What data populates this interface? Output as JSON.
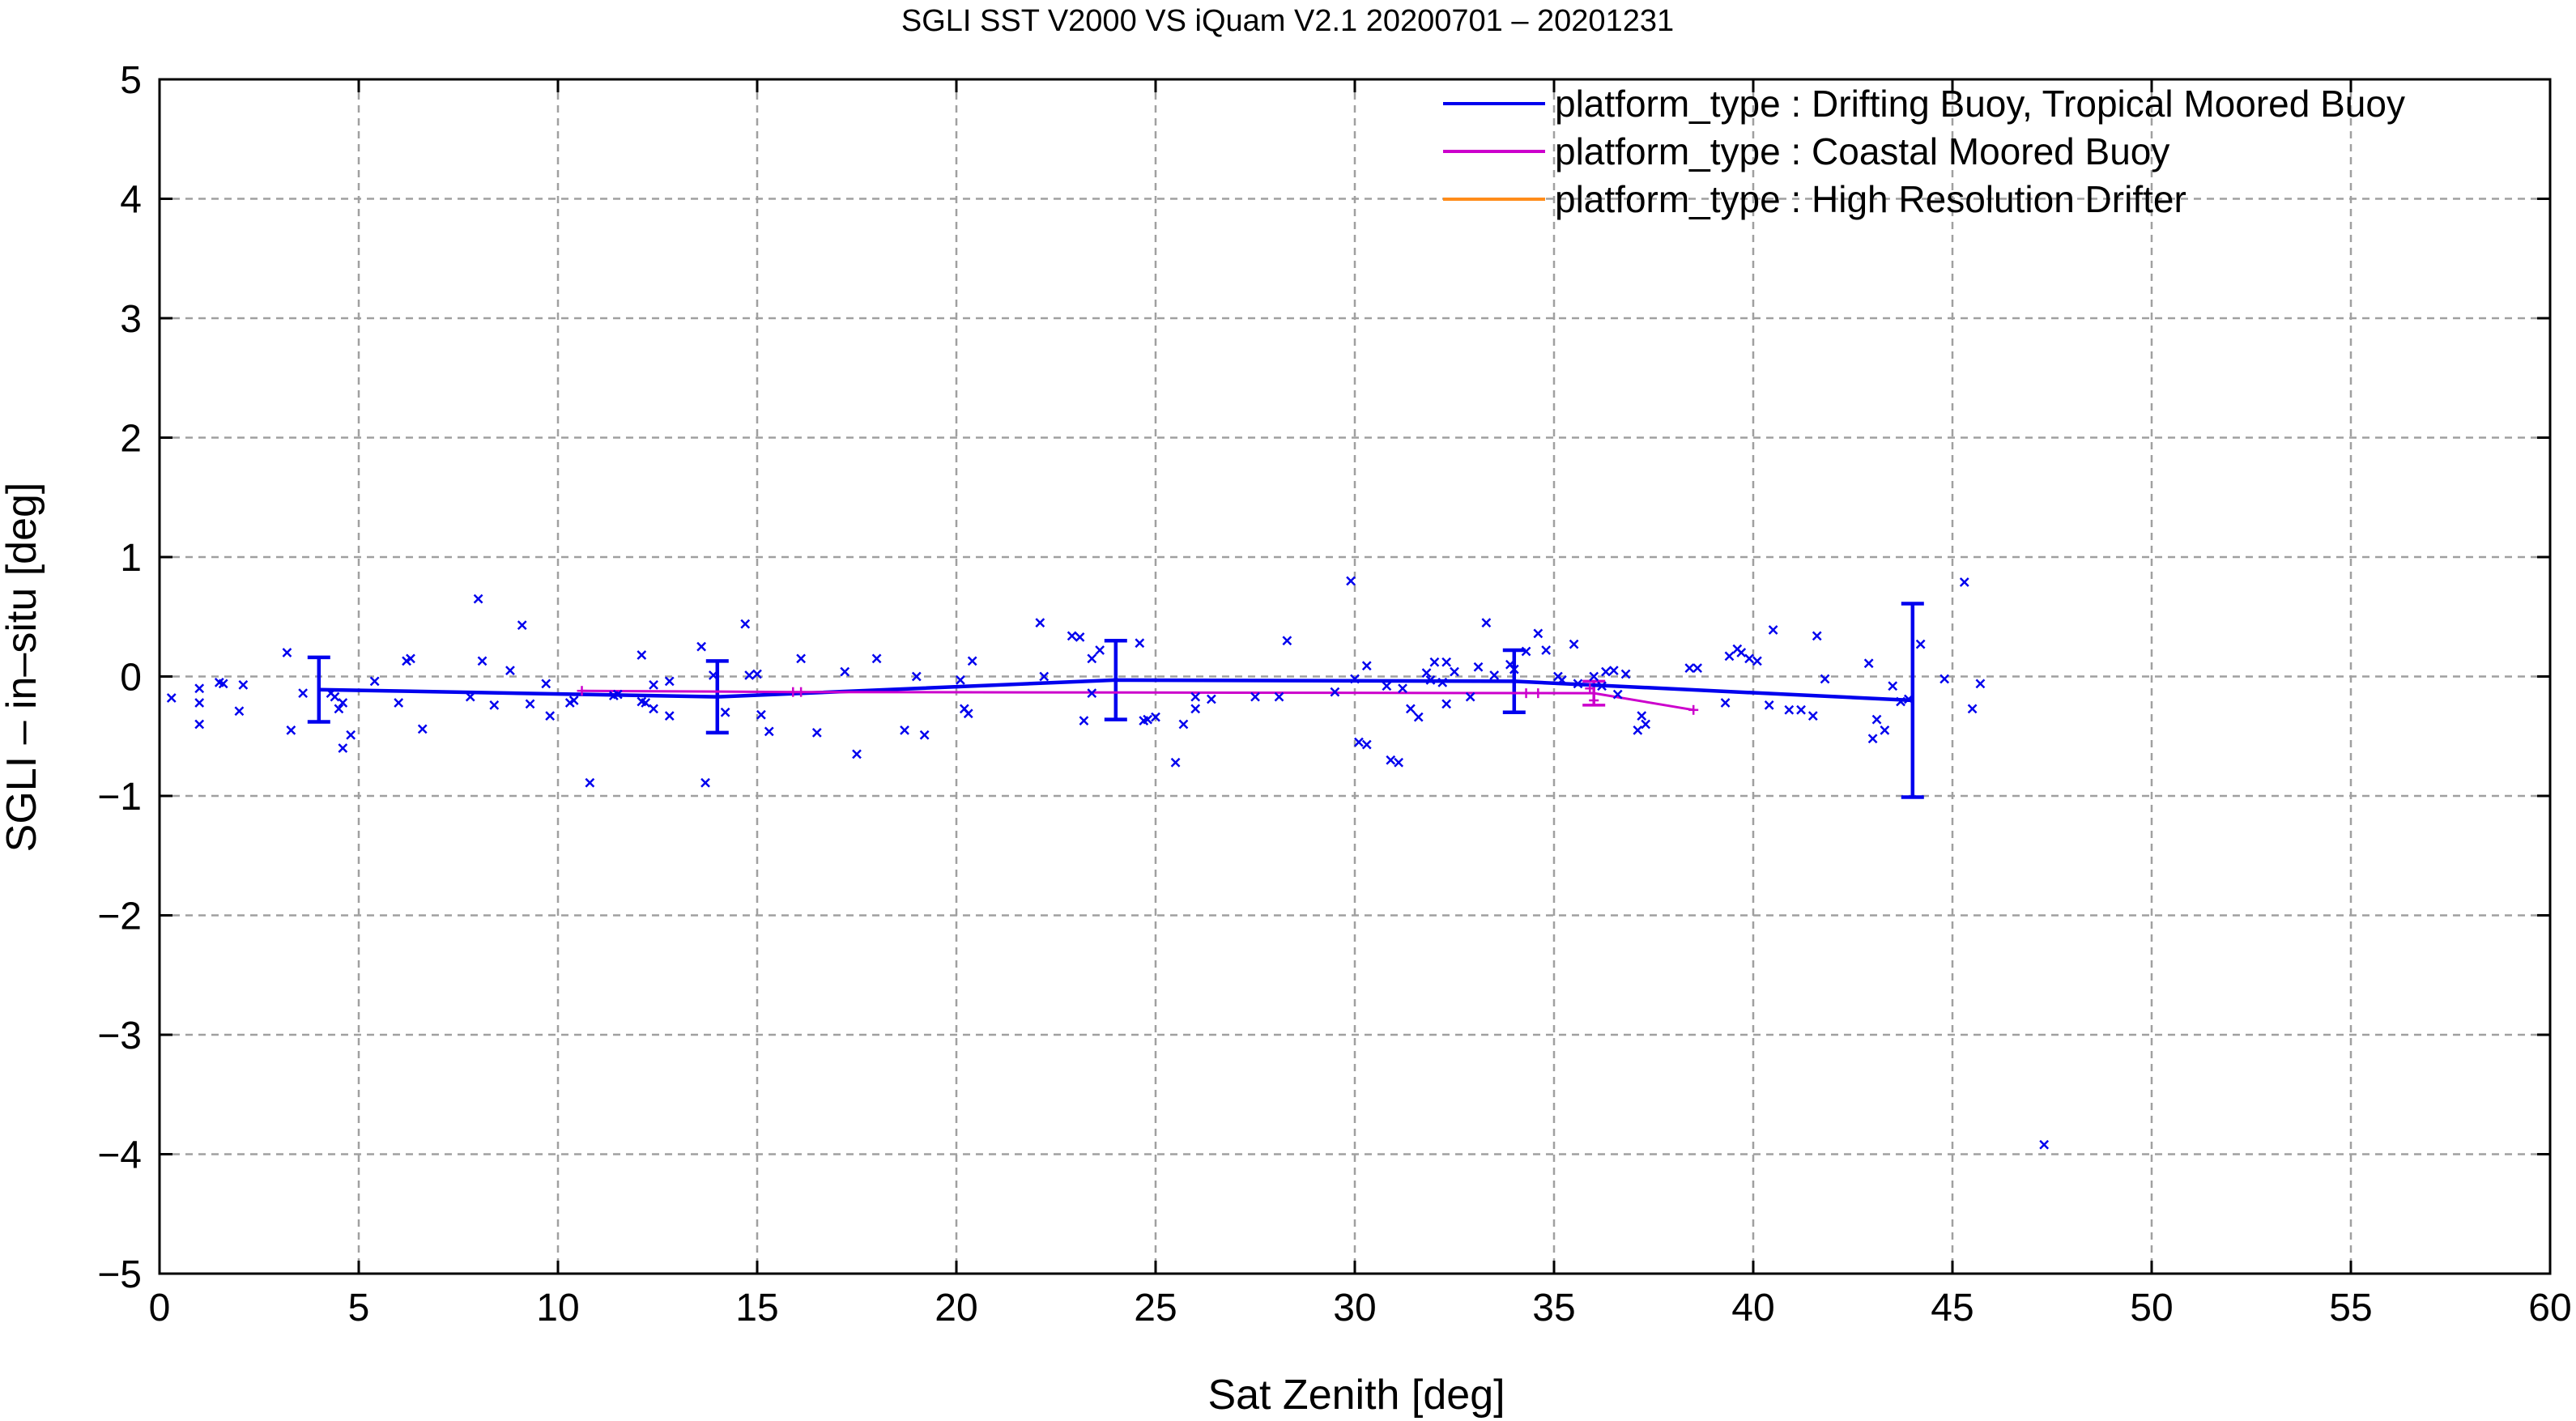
{
  "chart_data": {
    "type": "scatter",
    "title": "SGLI SST V2000 VS iQuam V2.1 20200701 – 20201231",
    "xlabel": "Sat Zenith [deg]",
    "ylabel": "SGLI – in–situ [deg]",
    "xlim": [
      0,
      60
    ],
    "ylim": [
      -5,
      5
    ],
    "xticks": [
      0,
      5,
      10,
      15,
      20,
      25,
      30,
      35,
      40,
      45,
      50,
      55,
      60
    ],
    "yticks": [
      -5,
      -4,
      -3,
      -2,
      -1,
      0,
      1,
      2,
      3,
      4,
      5
    ],
    "xtick_labels": [
      "0",
      "5",
      "10",
      "15",
      "20",
      "25",
      "30",
      "35",
      "40",
      "45",
      "50",
      "55",
      "60"
    ],
    "ytick_labels": [
      "−5",
      "−4",
      "−3",
      "−2",
      "−1",
      "0",
      "1",
      "2",
      "3",
      "4",
      "5"
    ],
    "grid": true,
    "legend_position": "top-right",
    "series": [
      {
        "name": "platform_type : Drifting Buoy, Tropical Moored Buoy",
        "color": "#0000ee",
        "marker": "x",
        "mean_line": {
          "x": [
            4,
            14,
            24,
            34,
            44
          ],
          "y": [
            -0.11,
            -0.17,
            -0.03,
            -0.04,
            -0.2
          ],
          "err": [
            0.27,
            0.3,
            0.33,
            0.26,
            0.81
          ]
        },
        "points": [
          [
            0.3,
            -0.18
          ],
          [
            1.0,
            -0.1
          ],
          [
            1.0,
            -0.22
          ],
          [
            1.0,
            -0.4
          ],
          [
            1.5,
            -0.05
          ],
          [
            1.6,
            -0.06
          ],
          [
            2.0,
            -0.29
          ],
          [
            2.1,
            -0.07
          ],
          [
            3.2,
            0.2
          ],
          [
            3.3,
            -0.45
          ],
          [
            3.6,
            -0.14
          ],
          [
            4.3,
            -0.14
          ],
          [
            4.4,
            -0.17
          ],
          [
            4.5,
            -0.27
          ],
          [
            4.6,
            -0.22
          ],
          [
            4.6,
            -0.6
          ],
          [
            4.8,
            -0.49
          ],
          [
            5.4,
            -0.04
          ],
          [
            6.0,
            -0.22
          ],
          [
            6.2,
            0.13
          ],
          [
            6.3,
            0.15
          ],
          [
            6.6,
            -0.44
          ],
          [
            7.8,
            -0.17
          ],
          [
            8.0,
            0.65
          ],
          [
            8.1,
            0.13
          ],
          [
            8.4,
            -0.24
          ],
          [
            8.8,
            0.05
          ],
          [
            9.1,
            0.43
          ],
          [
            9.3,
            -0.23
          ],
          [
            9.7,
            -0.06
          ],
          [
            9.8,
            -0.33
          ],
          [
            10.3,
            -0.22
          ],
          [
            10.4,
            -0.2
          ],
          [
            10.8,
            -0.89
          ],
          [
            11.4,
            -0.16
          ],
          [
            11.5,
            -0.15
          ],
          [
            12.1,
            -0.21
          ],
          [
            12.1,
            0.18
          ],
          [
            12.2,
            -0.22
          ],
          [
            12.4,
            -0.27
          ],
          [
            12.4,
            -0.07
          ],
          [
            12.8,
            -0.33
          ],
          [
            12.8,
            -0.04
          ],
          [
            13.6,
            0.25
          ],
          [
            13.7,
            -0.89
          ],
          [
            13.9,
            0.01
          ],
          [
            14.2,
            -0.3
          ],
          [
            14.7,
            0.44
          ],
          [
            14.8,
            0.01
          ],
          [
            15.0,
            0.02
          ],
          [
            15.1,
            -0.32
          ],
          [
            15.3,
            -0.46
          ],
          [
            16.1,
            0.15
          ],
          [
            16.5,
            -0.47
          ],
          [
            17.2,
            0.04
          ],
          [
            17.5,
            -0.65
          ],
          [
            18.0,
            0.15
          ],
          [
            18.7,
            -0.45
          ],
          [
            19.0,
            0.0
          ],
          [
            19.2,
            -0.49
          ],
          [
            20.1,
            -0.03
          ],
          [
            20.2,
            -0.27
          ],
          [
            20.3,
            -0.31
          ],
          [
            20.4,
            0.13
          ],
          [
            22.1,
            0.45
          ],
          [
            22.2,
            0.0
          ],
          [
            22.9,
            0.34
          ],
          [
            23.1,
            0.33
          ],
          [
            23.2,
            -0.37
          ],
          [
            23.4,
            0.15
          ],
          [
            23.4,
            -0.14
          ],
          [
            23.6,
            0.22
          ],
          [
            24.6,
            0.28
          ],
          [
            24.7,
            -0.37
          ],
          [
            24.8,
            -0.36
          ],
          [
            25.0,
            -0.34
          ],
          [
            25.5,
            -0.72
          ],
          [
            25.7,
            -0.4
          ],
          [
            26.0,
            -0.17
          ],
          [
            26.0,
            -0.27
          ],
          [
            26.4,
            -0.19
          ],
          [
            27.5,
            -0.17
          ],
          [
            28.1,
            -0.17
          ],
          [
            28.3,
            0.3
          ],
          [
            29.5,
            -0.13
          ],
          [
            29.9,
            0.8
          ],
          [
            30.0,
            -0.02
          ],
          [
            30.1,
            -0.55
          ],
          [
            30.3,
            -0.57
          ],
          [
            30.3,
            0.09
          ],
          [
            30.8,
            -0.08
          ],
          [
            30.9,
            -0.7
          ],
          [
            31.1,
            -0.72
          ],
          [
            31.2,
            -0.1
          ],
          [
            31.4,
            -0.27
          ],
          [
            31.6,
            -0.34
          ],
          [
            31.8,
            0.03
          ],
          [
            31.9,
            -0.03
          ],
          [
            32.0,
            0.12
          ],
          [
            32.2,
            -0.05
          ],
          [
            32.3,
            -0.23
          ],
          [
            32.3,
            0.12
          ],
          [
            32.5,
            0.04
          ],
          [
            32.9,
            -0.17
          ],
          [
            33.1,
            0.08
          ],
          [
            33.3,
            0.45
          ],
          [
            33.5,
            0.01
          ],
          [
            33.9,
            0.1
          ],
          [
            34.0,
            0.06
          ],
          [
            34.3,
            0.21
          ],
          [
            34.6,
            0.36
          ],
          [
            34.8,
            0.22
          ],
          [
            35.1,
            0.0
          ],
          [
            35.2,
            -0.03
          ],
          [
            35.5,
            0.27
          ],
          [
            35.6,
            -0.06
          ],
          [
            36.0,
            0.0
          ],
          [
            36.2,
            -0.08
          ],
          [
            36.3,
            0.04
          ],
          [
            36.5,
            0.05
          ],
          [
            36.6,
            -0.15
          ],
          [
            36.8,
            0.02
          ],
          [
            37.1,
            -0.45
          ],
          [
            37.2,
            -0.33
          ],
          [
            37.3,
            -0.4
          ],
          [
            38.4,
            0.07
          ],
          [
            38.6,
            0.07
          ],
          [
            39.3,
            -0.22
          ],
          [
            39.4,
            0.17
          ],
          [
            39.6,
            0.23
          ],
          [
            39.7,
            0.2
          ],
          [
            39.9,
            0.15
          ],
          [
            40.1,
            0.13
          ],
          [
            40.4,
            -0.24
          ],
          [
            40.5,
            0.39
          ],
          [
            40.9,
            -0.28
          ],
          [
            41.2,
            -0.28
          ],
          [
            41.5,
            -0.33
          ],
          [
            41.6,
            0.34
          ],
          [
            41.8,
            -0.02
          ],
          [
            42.9,
            0.11
          ],
          [
            43.0,
            -0.52
          ],
          [
            43.1,
            -0.36
          ],
          [
            43.3,
            -0.45
          ],
          [
            43.5,
            -0.08
          ],
          [
            43.7,
            -0.21
          ],
          [
            43.9,
            -0.19
          ],
          [
            44.2,
            0.27
          ],
          [
            44.8,
            -0.02
          ],
          [
            45.3,
            0.79
          ],
          [
            45.5,
            -0.27
          ],
          [
            45.7,
            -0.06
          ],
          [
            47.3,
            -3.92
          ]
        ]
      },
      {
        "name": "platform_type : Coastal Moored Buoy",
        "color": "#cc00cc",
        "marker": "+",
        "mean_line": {
          "x": [
            10.6,
            16,
            36,
            38.5
          ],
          "y": [
            -0.12,
            -0.13,
            -0.14,
            -0.28
          ],
          "err": [
            0,
            0,
            0.1,
            0
          ]
        },
        "points": [
          [
            10.6,
            -0.12
          ],
          [
            15.9,
            -0.13
          ],
          [
            16.1,
            -0.13
          ],
          [
            34.3,
            -0.14
          ],
          [
            34.6,
            -0.14
          ],
          [
            35.9,
            -0.1
          ],
          [
            36.0,
            -0.2
          ],
          [
            38.5,
            -0.28
          ]
        ]
      },
      {
        "name": "platform_type : High Resolution Drifter",
        "color": "#ff8c1a",
        "marker": "none",
        "points": []
      }
    ]
  }
}
